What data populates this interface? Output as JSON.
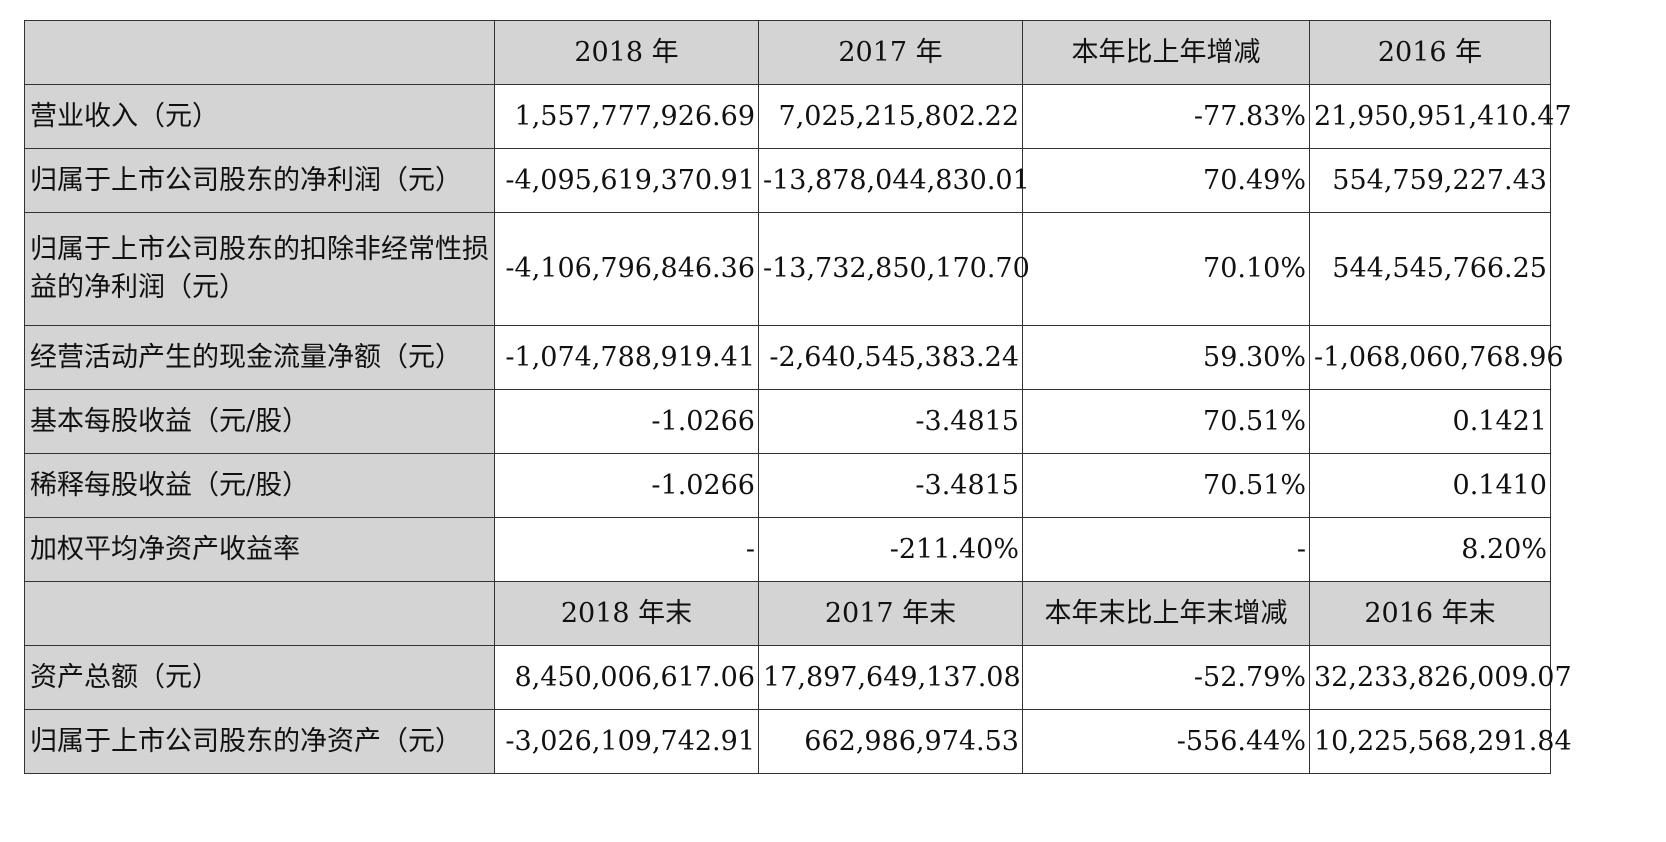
{
  "top_fragment": "…",
  "header1": [
    "",
    "2018 年",
    "2017 年",
    "本年比上年增减",
    "2016 年"
  ],
  "rows1": [
    {
      "label": "营业收入（元）",
      "v2018": "1,557,777,926.69",
      "v2017": "7,025,215,802.22",
      "change": "-77.83%",
      "v2016": "21,950,951,410.47"
    },
    {
      "label": "归属于上市公司股东的净利润（元）",
      "v2018": "-4,095,619,370.91",
      "v2017": "-13,878,044,830.01",
      "change": "70.49%",
      "v2016": "554,759,227.43"
    },
    {
      "label": "归属于上市公司股东的扣除非经常性损益的净利润（元）",
      "v2018": "-4,106,796,846.36",
      "v2017": "-13,732,850,170.70",
      "change": "70.10%",
      "v2016": "544,545,766.25"
    },
    {
      "label": "经营活动产生的现金流量净额（元）",
      "v2018": "-1,074,788,919.41",
      "v2017": "-2,640,545,383.24",
      "change": "59.30%",
      "v2016": "-1,068,060,768.96"
    },
    {
      "label": "基本每股收益（元/股）",
      "v2018": "-1.0266",
      "v2017": "-3.4815",
      "change": "70.51%",
      "v2016": "0.1421"
    },
    {
      "label": "稀释每股收益（元/股）",
      "v2018": "-1.0266",
      "v2017": "-3.4815",
      "change": "70.51%",
      "v2016": "0.1410"
    },
    {
      "label": "加权平均净资产收益率",
      "v2018": "-",
      "v2017": "-211.40%",
      "change": "-",
      "v2016": "8.20%"
    }
  ],
  "header2": [
    "",
    "2018 年末",
    "2017 年末",
    "本年末比上年末增减",
    "2016 年末"
  ],
  "rows2": [
    {
      "label": "资产总额（元）",
      "v2018": "8,450,006,617.06",
      "v2017": "17,897,649,137.08",
      "change": "-52.79%",
      "v2016": "32,233,826,009.07"
    },
    {
      "label": "归属于上市公司股东的净资产（元）",
      "v2018": "-3,026,109,742.91",
      "v2017": "662,986,974.53",
      "change": "-556.44%",
      "v2016": "10,225,568,291.84"
    }
  ]
}
